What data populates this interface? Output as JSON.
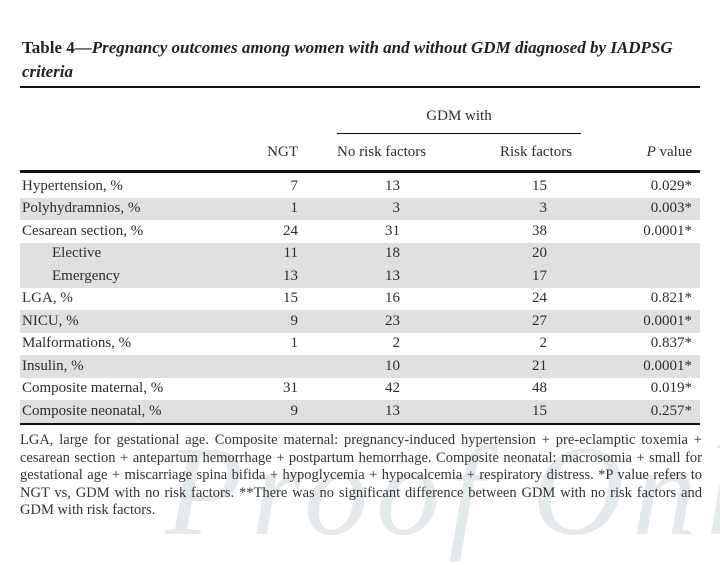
{
  "caption": {
    "prefix": "Table 4",
    "dash": "—",
    "rest": "Pregnancy outcomes among women with and without GDM diagnosed by IADPSG criteria"
  },
  "table": {
    "spanner_label": "GDM with",
    "columns": {
      "ngt": "NGT",
      "no_risk": "No risk factors",
      "risk": "Risk factors",
      "p_italic": "P",
      "p_rest": " value"
    },
    "rows": [
      {
        "label": "Hypertension, %",
        "indent": false,
        "ngt": "7",
        "no_risk": "13",
        "risk": "15",
        "p": "0.029*",
        "shaded": false
      },
      {
        "label": "Polyhydramnios, %",
        "indent": false,
        "ngt": "1",
        "no_risk": "3",
        "risk": "3",
        "p": "0.003*",
        "shaded": true
      },
      {
        "label": "Cesarean section, %",
        "indent": false,
        "ngt": "24",
        "no_risk": "31",
        "risk": "38",
        "p": "0.0001*",
        "shaded": false
      },
      {
        "label": "Elective",
        "indent": true,
        "ngt": "11",
        "no_risk": "18",
        "risk": "20",
        "p": "",
        "shaded": true
      },
      {
        "label": "Emergency",
        "indent": true,
        "ngt": "13",
        "no_risk": "13",
        "risk": "17",
        "p": "",
        "shaded": true
      },
      {
        "label": "LGA, %",
        "indent": false,
        "ngt": "15",
        "no_risk": "16",
        "risk": "24",
        "p": "0.821*",
        "shaded": false
      },
      {
        "label": "NICU, %",
        "indent": false,
        "ngt": "9",
        "no_risk": "23",
        "risk": "27",
        "p": "0.0001*",
        "shaded": true
      },
      {
        "label": "Malformations, %",
        "indent": false,
        "ngt": "1",
        "no_risk": "2",
        "risk": "2",
        "p": "0.837*",
        "shaded": false
      },
      {
        "label": "Insulin, %",
        "indent": false,
        "ngt": "",
        "no_risk": "10",
        "risk": "21",
        "p": "0.0001*",
        "shaded": true
      },
      {
        "label": "Composite maternal, %",
        "indent": false,
        "ngt": "31",
        "no_risk": "42",
        "risk": "48",
        "p": "0.019*",
        "shaded": false
      },
      {
        "label": "Composite neonatal, %",
        "indent": false,
        "ngt": "9",
        "no_risk": "13",
        "risk": "15",
        "p": "0.257*",
        "shaded": true
      }
    ]
  },
  "footnote": "LGA, large for gestational age. Composite maternal: pregnancy-induced hypertension + pre-eclamptic toxemia + cesarean section + antepartum hemorrhage + postpartum hemorrhage. Composite neonatal: macrosomia + small for gestational age + miscarriage spina bifida + hypoglycemia + hypocalcemia + respiratory distress. *P value refers to NGT vs, GDM with no risk factors. **There was no significant difference between GDM with no risk factors and GDM with risk factors.",
  "watermark": "Proof Onl",
  "colors": {
    "row_shade": "#e0e0e0",
    "rule": "#111111",
    "text": "#2d2d2d"
  }
}
